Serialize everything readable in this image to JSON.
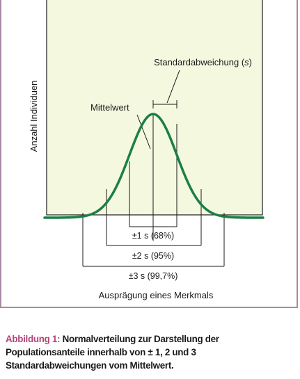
{
  "diagram": {
    "y_axis_label": "Anzahl Individuen",
    "x_axis_label": "Ausprägung eines Merkmals",
    "mean_label": "Mittelwert",
    "sd_label_prefix": "Standardabweichung (",
    "sd_label_symbol": "s",
    "sd_label_suffix": ")",
    "ranges": [
      {
        "label": "±1 s (68%)"
      },
      {
        "label": "±2 s (95%)"
      },
      {
        "label": "±3 s (99,7%)"
      }
    ],
    "colors": {
      "plot_background": "#f4f8df",
      "curve": "#1b7f45",
      "frame": "#a98aa6",
      "caption_label": "#b2447a"
    }
  },
  "caption": {
    "label": "Abbildung 1:",
    "text": "Normalverteilung zur Darstellung der Populationsanteile innerhalb von ± 1, 2 und 3 Standardabweichungen vom Mittelwert."
  }
}
